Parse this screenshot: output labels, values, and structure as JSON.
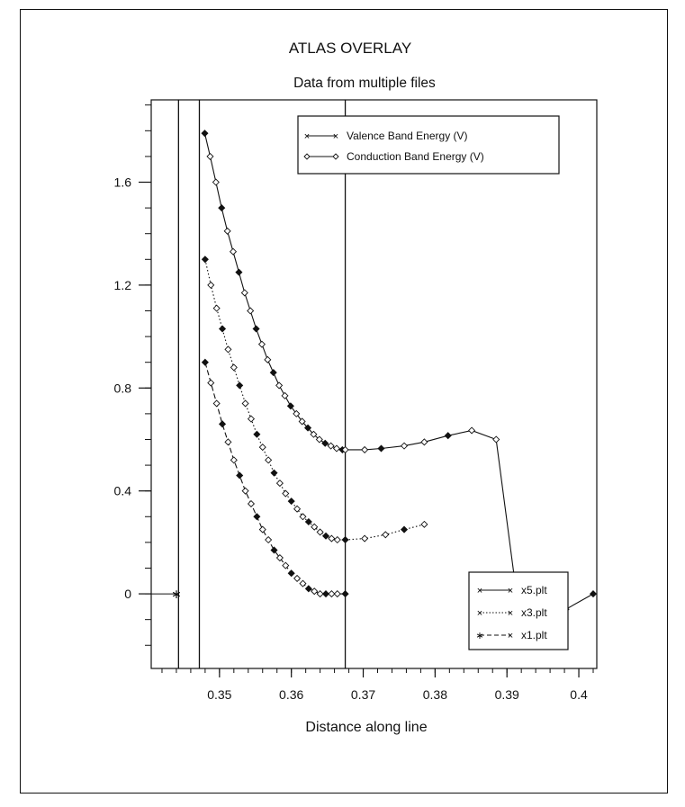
{
  "chart_data": {
    "type": "line",
    "title": "ATLAS OVERLAY",
    "subtitle": "Data from multiple files",
    "xlabel": "Distance along line",
    "ylabel": "",
    "xlim": [
      0.3405,
      0.4025
    ],
    "ylim": [
      -0.29,
      1.92
    ],
    "xticks": [
      0.35,
      0.36,
      0.37,
      0.38,
      0.39,
      0.4
    ],
    "xtick_labels": [
      "0.35",
      "0.36",
      "0.37",
      "0.38",
      "0.39",
      "0.4"
    ],
    "yticks": [
      0,
      0.4,
      0.8,
      1.2,
      1.6
    ],
    "ytick_labels": [
      "0",
      "0.4",
      "0.8",
      "1.2",
      "1.6"
    ],
    "vertical_lines": [
      0.3443,
      0.3472,
      0.3675
    ],
    "legend_quantities": {
      "placement": "top",
      "entries": [
        {
          "label": "Valence Band Energy (V)",
          "marker": "x"
        },
        {
          "label": "Conduction Band Energy (V)",
          "marker": "diamond"
        }
      ]
    },
    "legend_files": {
      "placement": "bottom-right",
      "entries": [
        {
          "label": "x5.plt",
          "line_style": "solid"
        },
        {
          "label": "x3.plt",
          "line_style": "dotted"
        },
        {
          "label": "x1.plt",
          "line_style": "dashed"
        }
      ]
    },
    "series": [
      {
        "name": "x5.plt",
        "line_style": "solid",
        "x": [
          0.34795,
          0.3487,
          0.3495,
          0.3503,
          0.3511,
          0.3519,
          0.3527,
          0.3535,
          0.3543,
          0.3551,
          0.3559,
          0.3567,
          0.3575,
          0.3583,
          0.3591,
          0.3599,
          0.3607,
          0.3615,
          0.3623,
          0.3631,
          0.3639,
          0.3647,
          0.3655,
          0.3663,
          0.3671,
          0.3675,
          0.3702,
          0.3725,
          0.3757,
          0.3785,
          0.3818,
          0.3851,
          0.3885,
          0.3917,
          0.395,
          0.3982,
          0.402
        ],
        "y": [
          1.79,
          1.7,
          1.6,
          1.5,
          1.41,
          1.33,
          1.25,
          1.17,
          1.1,
          1.03,
          0.97,
          0.91,
          0.86,
          0.81,
          0.77,
          0.73,
          0.7,
          0.67,
          0.645,
          0.62,
          0.6,
          0.585,
          0.575,
          0.565,
          0.56,
          0.56,
          0.56,
          0.565,
          0.575,
          0.59,
          0.615,
          0.635,
          0.6,
          -0.08,
          -0.07,
          -0.06,
          0.0
        ]
      },
      {
        "name": "x3.plt",
        "line_style": "dotted",
        "x": [
          0.348,
          0.3488,
          0.3496,
          0.3504,
          0.3512,
          0.352,
          0.3528,
          0.3536,
          0.3544,
          0.3552,
          0.356,
          0.3568,
          0.3576,
          0.3584,
          0.3592,
          0.36,
          0.3608,
          0.3616,
          0.3624,
          0.3632,
          0.364,
          0.3648,
          0.3656,
          0.3664,
          0.3675,
          0.3702,
          0.3731,
          0.3757,
          0.3785
        ],
        "y": [
          1.3,
          1.2,
          1.11,
          1.03,
          0.95,
          0.88,
          0.81,
          0.74,
          0.68,
          0.62,
          0.57,
          0.52,
          0.47,
          0.43,
          0.39,
          0.36,
          0.33,
          0.3,
          0.28,
          0.26,
          0.24,
          0.225,
          0.215,
          0.21,
          0.21,
          0.215,
          0.23,
          0.25,
          0.27
        ]
      },
      {
        "name": "x1.plt",
        "line_style": "dashed",
        "x": [
          0.348,
          0.3488,
          0.3496,
          0.3504,
          0.3512,
          0.352,
          0.3528,
          0.3536,
          0.3544,
          0.3552,
          0.356,
          0.3568,
          0.3576,
          0.3584,
          0.3592,
          0.36,
          0.3608,
          0.3616,
          0.3624,
          0.3632,
          0.364,
          0.3648,
          0.3656,
          0.3664,
          0.3675
        ],
        "y": [
          0.9,
          0.82,
          0.74,
          0.66,
          0.59,
          0.52,
          0.46,
          0.4,
          0.35,
          0.3,
          0.25,
          0.21,
          0.17,
          0.14,
          0.11,
          0.08,
          0.06,
          0.04,
          0.02,
          0.01,
          0.0,
          0.0,
          0.0,
          0.0,
          0.0
        ]
      }
    ]
  }
}
